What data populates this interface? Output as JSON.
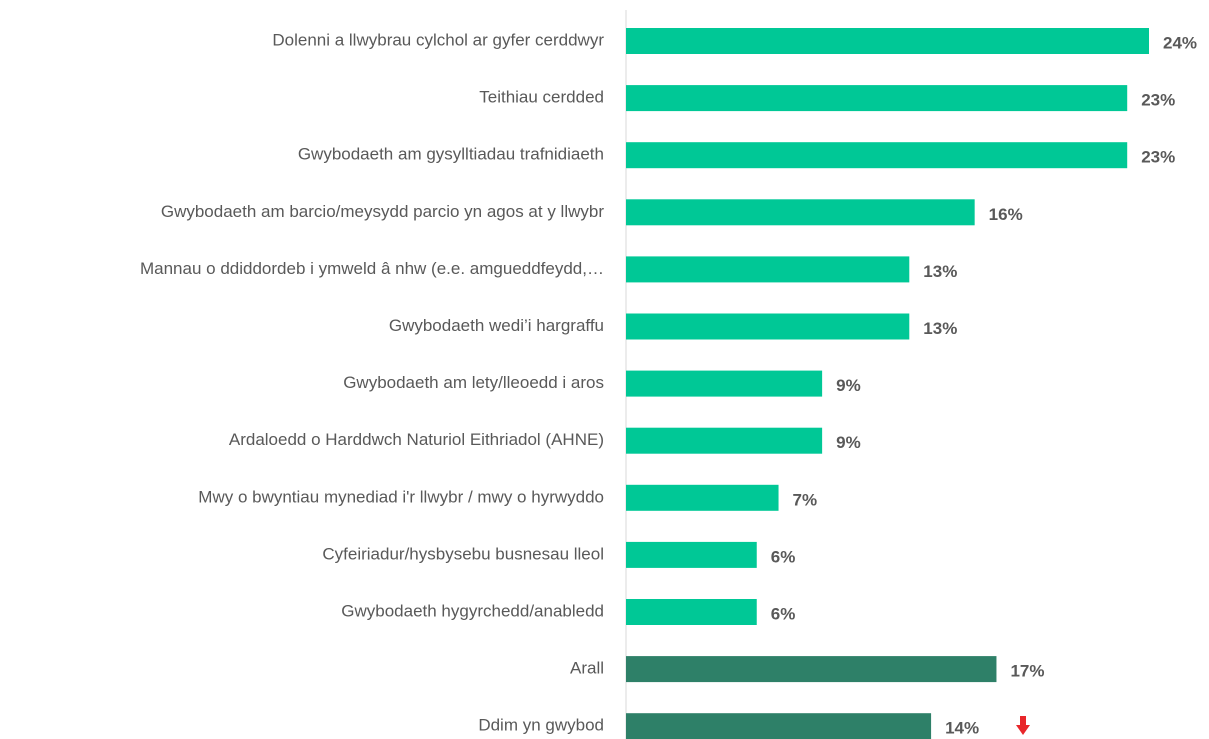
{
  "chart_data": {
    "type": "barh",
    "categories": [
      "Dolenni a llwybrau cylchol ar gyfer cerddwyr",
      "Teithiau cerdded",
      "Gwybodaeth am gysylltiadau trafnidiaeth",
      "Gwybodaeth am barcio/meysydd parcio yn agos at y llwybr",
      "Mannau o ddiddordeb i ymweld â nhw (e.e. amgueddfeydd,…",
      "Gwybodaeth wedi’i hargraffu",
      "Gwybodaeth am lety/lleoedd i aros",
      "Ardaloedd o Harddwch Naturiol Eithriadol (AHNE)",
      "Mwy o bwyntiau mynediad i'r llwybr / mwy o hyrwyddo",
      "Cyfeiriadur/hysbysebu busnesau lleol",
      "Gwybodaeth hygyrchedd/anabledd",
      "Arall",
      "Ddim yn gwybod"
    ],
    "values": [
      24,
      23,
      23,
      16,
      13,
      13,
      9,
      9,
      7,
      6,
      6,
      17,
      14
    ],
    "value_labels": [
      "24%",
      "23%",
      "23%",
      "16%",
      "13%",
      "13%",
      "9%",
      "9%",
      "7%",
      "6%",
      "6%",
      "17%",
      "14%"
    ],
    "colors": [
      "#00c896",
      "#00c896",
      "#00c896",
      "#00c896",
      "#00c896",
      "#00c896",
      "#00c896",
      "#00c896",
      "#00c896",
      "#00c896",
      "#00c896",
      "#2e8068",
      "#2e8068"
    ]
  }
}
